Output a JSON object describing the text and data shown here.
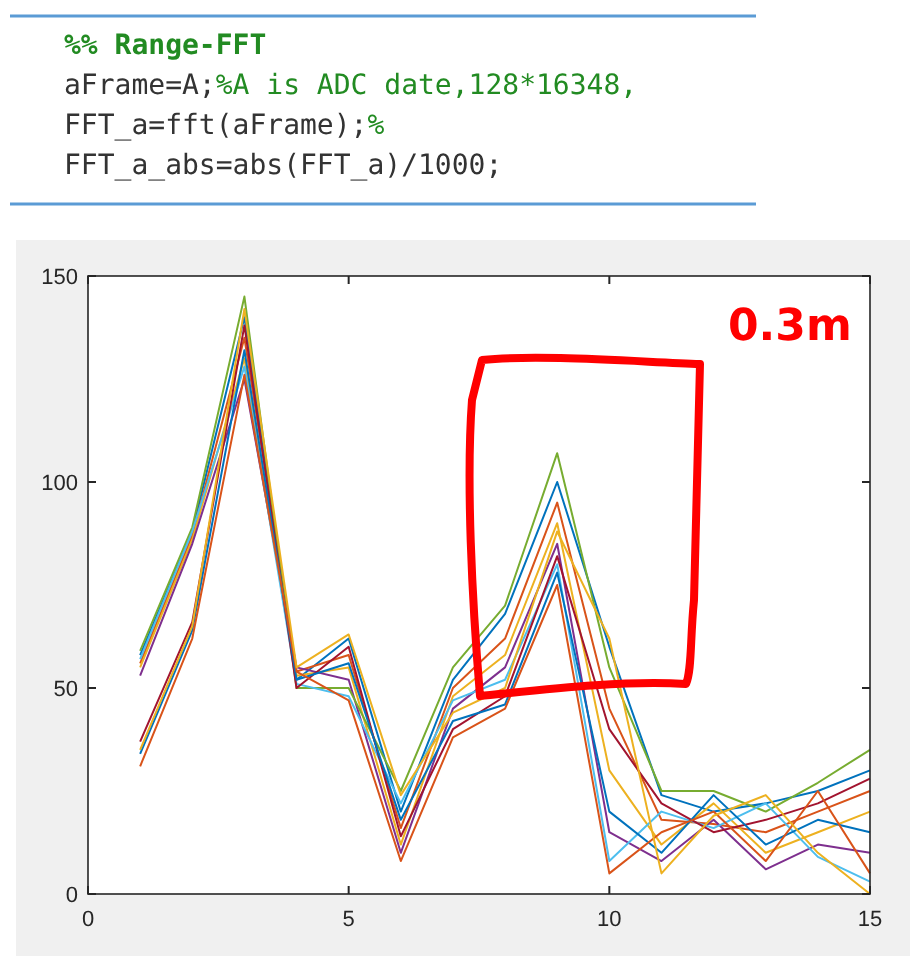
{
  "chart_data": {
    "type": "line",
    "annotations": [
      "%% Range-FFT",
      "aFrame=A;%A is ADC date,128*16348,",
      "FFT_a=fft(aFrame);%",
      "FFT_a_abs=abs(FFT_a)/1000;",
      "0.3m"
    ],
    "x": [
      1,
      2,
      3,
      4,
      5,
      6,
      7,
      8,
      9,
      10,
      11,
      12,
      13,
      14,
      15
    ],
    "series": [
      {
        "color": "#0072bd",
        "values": [
          58,
          88,
          140,
          52,
          62,
          20,
          52,
          68,
          100,
          60,
          24,
          20,
          22,
          25,
          30
        ]
      },
      {
        "color": "#d95319",
        "values": [
          56,
          87,
          135,
          54,
          58,
          16,
          50,
          62,
          95,
          45,
          18,
          17,
          15,
          20,
          25
        ]
      },
      {
        "color": "#edb120",
        "values": [
          55,
          86,
          130,
          53,
          55,
          12,
          48,
          58,
          90,
          30,
          12,
          22,
          10,
          15,
          20
        ]
      },
      {
        "color": "#7e2f8e",
        "values": [
          53,
          85,
          125,
          55,
          52,
          10,
          45,
          55,
          85,
          15,
          8,
          18,
          6,
          12,
          10
        ]
      },
      {
        "color": "#77ac30",
        "values": [
          59,
          89,
          145,
          50,
          50,
          25,
          55,
          70,
          107,
          55,
          25,
          25,
          20,
          27,
          35
        ]
      },
      {
        "color": "#4dbeee",
        "values": [
          57,
          88,
          128,
          51,
          48,
          22,
          47,
          52,
          80,
          8,
          20,
          16,
          22,
          9,
          3
        ]
      },
      {
        "color": "#a2142f",
        "values": [
          37,
          66,
          138,
          50,
          60,
          14,
          40,
          48,
          82,
          40,
          22,
          15,
          18,
          22,
          28
        ]
      },
      {
        "color": "#0072bd",
        "values": [
          34,
          64,
          132,
          52,
          56,
          18,
          42,
          46,
          78,
          20,
          10,
          24,
          12,
          18,
          15
        ]
      },
      {
        "color": "#d95319",
        "values": [
          31,
          62,
          126,
          54,
          47,
          8,
          38,
          45,
          75,
          5,
          15,
          20,
          8,
          25,
          5
        ]
      },
      {
        "color": "#edb120",
        "values": [
          35,
          65,
          142,
          55,
          63,
          24,
          44,
          50,
          88,
          62,
          5,
          19,
          24,
          10,
          0
        ]
      }
    ],
    "xlim": [
      0,
      15
    ],
    "xticks": [
      0,
      5,
      10,
      15
    ],
    "ylim": [
      0,
      150
    ],
    "yticks": [
      0,
      50,
      100,
      150
    ],
    "grid": false,
    "marker": "none",
    "line_style": "solid"
  }
}
